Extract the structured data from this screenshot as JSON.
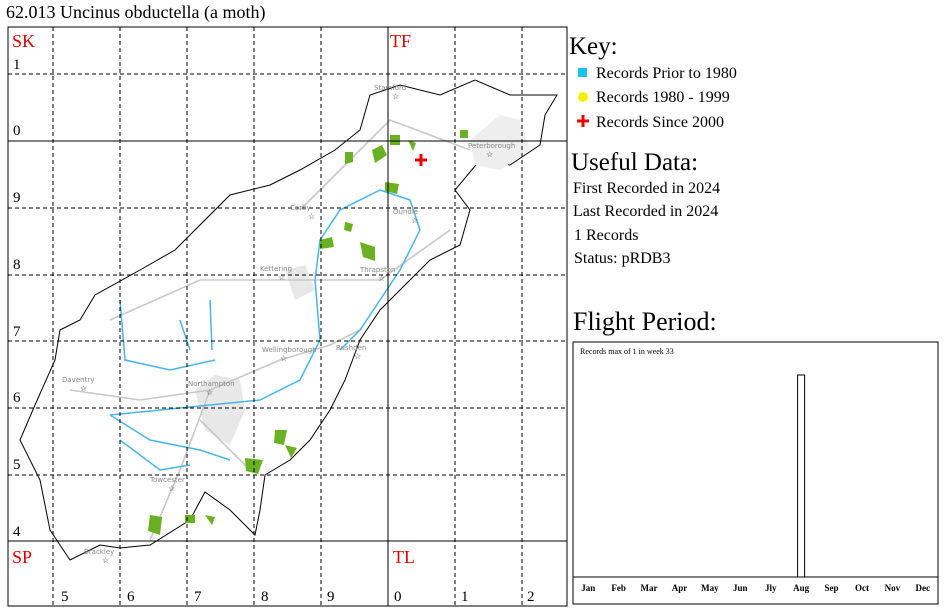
{
  "title": "62.013 Uncinus obductella (a moth)",
  "map": {
    "square_labels": [
      "SK",
      "TF",
      "SP",
      "TL"
    ],
    "row_labels": [
      "1",
      "0",
      "9",
      "8",
      "7",
      "6",
      "5",
      "4"
    ],
    "column_labels": [
      "5",
      "6",
      "7",
      "8",
      "9",
      "0",
      "1",
      "2"
    ],
    "places": [
      "Stamford",
      "Peterborough",
      "Corby",
      "Oundle",
      "Kettering",
      "Thrapston",
      "Wellingborough",
      "Rushden",
      "Daventry",
      "Northampton",
      "Towcester",
      "Brackley"
    ]
  },
  "key": {
    "title": "Key:",
    "items": [
      "Records Prior to 1980",
      "Records 1980 - 1999",
      "Records Since 2000"
    ]
  },
  "useful_data": {
    "title": "Useful Data:",
    "lines": [
      "First Recorded in 2024",
      "Last Recorded in 2024",
      "1 Records",
      "Status: pRDB3"
    ]
  },
  "flight_period": {
    "title": "Flight Period:",
    "note": "Records max of 1 in week 33",
    "months": [
      "Jan",
      "Feb",
      "Mar",
      "Apr",
      "May",
      "Jun",
      "Jly",
      "Aug",
      "Sep",
      "Oct",
      "Nov",
      "Dec"
    ],
    "records": [
      {
        "week": 33,
        "count": 1
      }
    ]
  }
}
